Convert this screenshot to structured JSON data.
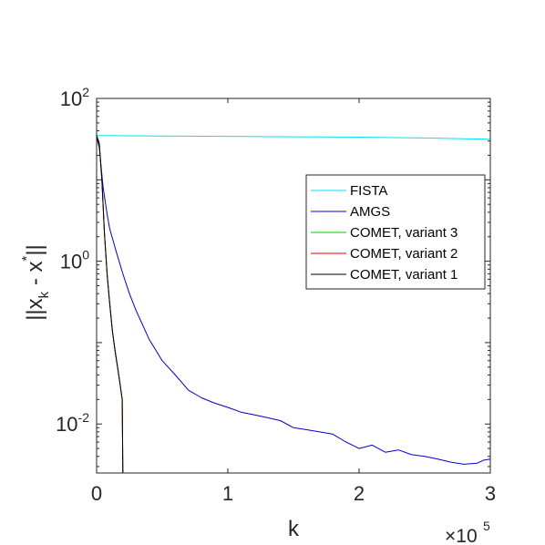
{
  "chart_data": {
    "type": "line",
    "xlabel": "k",
    "ylabel_main": "||x",
    "ylabel_sub": "k",
    "ylabel_mid": " - x",
    "ylabel_sup": "*",
    "ylabel_end": "||",
    "x_exponent_base": "×10",
    "x_exponent_power": "5",
    "yscale": "log",
    "xlim": [
      0,
      300000
    ],
    "ylim": [
      0.0025,
      100
    ],
    "grid": false,
    "legend_position": "top-right",
    "x_ticks": [
      {
        "value": 0,
        "label": "0"
      },
      {
        "value": 100000,
        "label": "1"
      },
      {
        "value": 200000,
        "label": "2"
      },
      {
        "value": 300000,
        "label": "3"
      }
    ],
    "y_ticks": [
      {
        "value": 100,
        "base": "10",
        "exp": "2"
      },
      {
        "value": 1,
        "base": "10",
        "exp": "0"
      },
      {
        "value": 0.01,
        "base": "10",
        "exp": "-2"
      }
    ],
    "series": [
      {
        "name": "FISTA",
        "color": "#00e5ee",
        "x": [
          0,
          50000,
          100000,
          150000,
          200000,
          250000,
          300000
        ],
        "y": [
          35,
          34.6,
          34.2,
          33.8,
          33.4,
          32.7,
          31.5
        ]
      },
      {
        "name": "AMGS",
        "color": "#0000cc",
        "x": [
          0,
          2000,
          5000,
          8000,
          10000,
          15000,
          20000,
          25000,
          30000,
          40000,
          50000,
          60000,
          70000,
          80000,
          90000,
          100000,
          110000,
          120000,
          130000,
          140000,
          150000,
          160000,
          170000,
          180000,
          190000,
          200000,
          210000,
          220000,
          230000,
          240000,
          250000,
          260000,
          270000,
          280000,
          290000,
          295000,
          300000
        ],
        "y": [
          33,
          25,
          8,
          3.8,
          2.5,
          1.3,
          0.7,
          0.4,
          0.25,
          0.11,
          0.06,
          0.04,
          0.026,
          0.021,
          0.018,
          0.016,
          0.014,
          0.013,
          0.012,
          0.011,
          0.009,
          0.0085,
          0.008,
          0.0075,
          0.006,
          0.005,
          0.0055,
          0.0045,
          0.0048,
          0.0042,
          0.004,
          0.0037,
          0.0034,
          0.0032,
          0.0033,
          0.0036,
          0.0037
        ]
      },
      {
        "name": "COMET, variant 3",
        "color": "#00cc00",
        "x": [
          0,
          2000,
          4000,
          6000,
          8000,
          10000,
          12000,
          14000,
          16000,
          18000,
          19500,
          20000,
          21000,
          100000,
          200000,
          300000
        ],
        "y": [
          35,
          28,
          10,
          2.2,
          0.7,
          0.3,
          0.14,
          0.08,
          0.05,
          0.03,
          0.02,
          0.0025,
          0.0024,
          0.0024,
          0.0024,
          0.0024
        ]
      },
      {
        "name": "COMET, variant 2",
        "color": "#ee0000",
        "x": [
          0,
          2000,
          4000,
          6000,
          8000,
          10000,
          12000,
          14000,
          16000,
          18000,
          19500,
          20000,
          21000,
          100000,
          200000,
          300000
        ],
        "y": [
          35,
          28,
          10,
          2.2,
          0.7,
          0.3,
          0.14,
          0.08,
          0.05,
          0.03,
          0.02,
          0.0025,
          0.0025,
          0.0025,
          0.0025,
          0.0025
        ]
      },
      {
        "name": "COMET, variant 1",
        "color": "#000000",
        "x": [
          0,
          2000,
          4000,
          6000,
          8000,
          10000,
          12000,
          14000,
          16000,
          18000,
          19500,
          20000,
          21000,
          100000,
          200000,
          300000
        ],
        "y": [
          35,
          28,
          10,
          2.2,
          0.7,
          0.3,
          0.14,
          0.08,
          0.05,
          0.03,
          0.02,
          0.0025,
          0.0025,
          0.0025,
          0.0025,
          0.0025
        ]
      }
    ]
  }
}
